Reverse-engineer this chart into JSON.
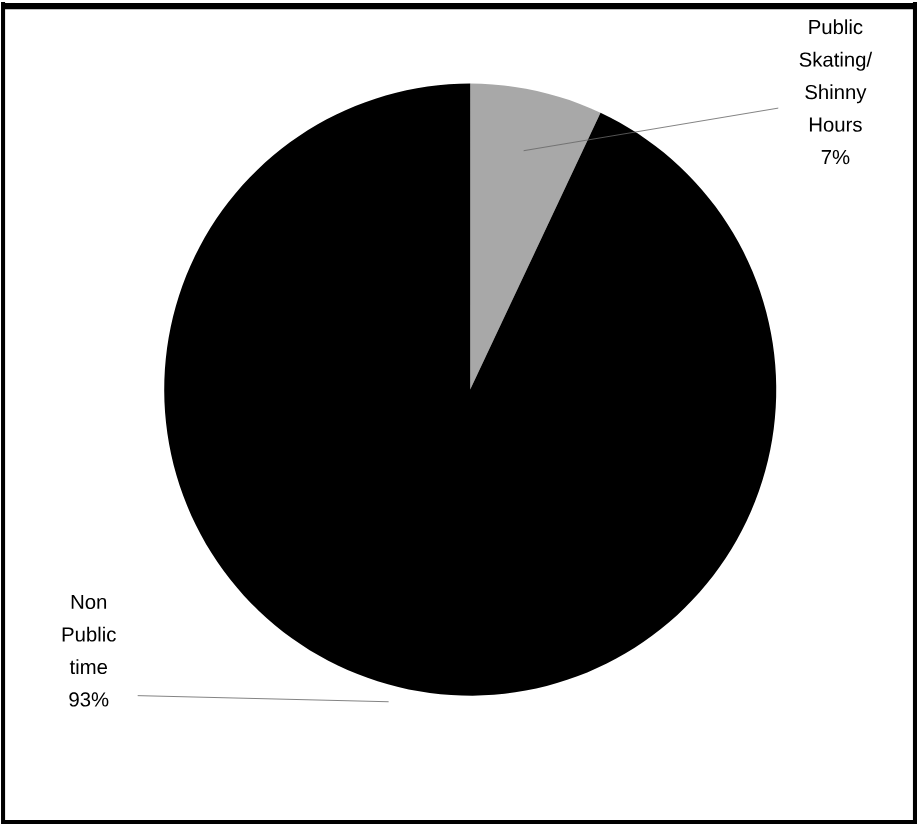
{
  "chart_data": {
    "type": "pie",
    "categories": [
      "Public Skating/ Shinny Hours",
      "Non Public time"
    ],
    "values": [
      7,
      93
    ],
    "colors": [
      "#a8a8a8",
      "#000000"
    ],
    "value_labels": [
      "7%",
      "93%"
    ]
  }
}
